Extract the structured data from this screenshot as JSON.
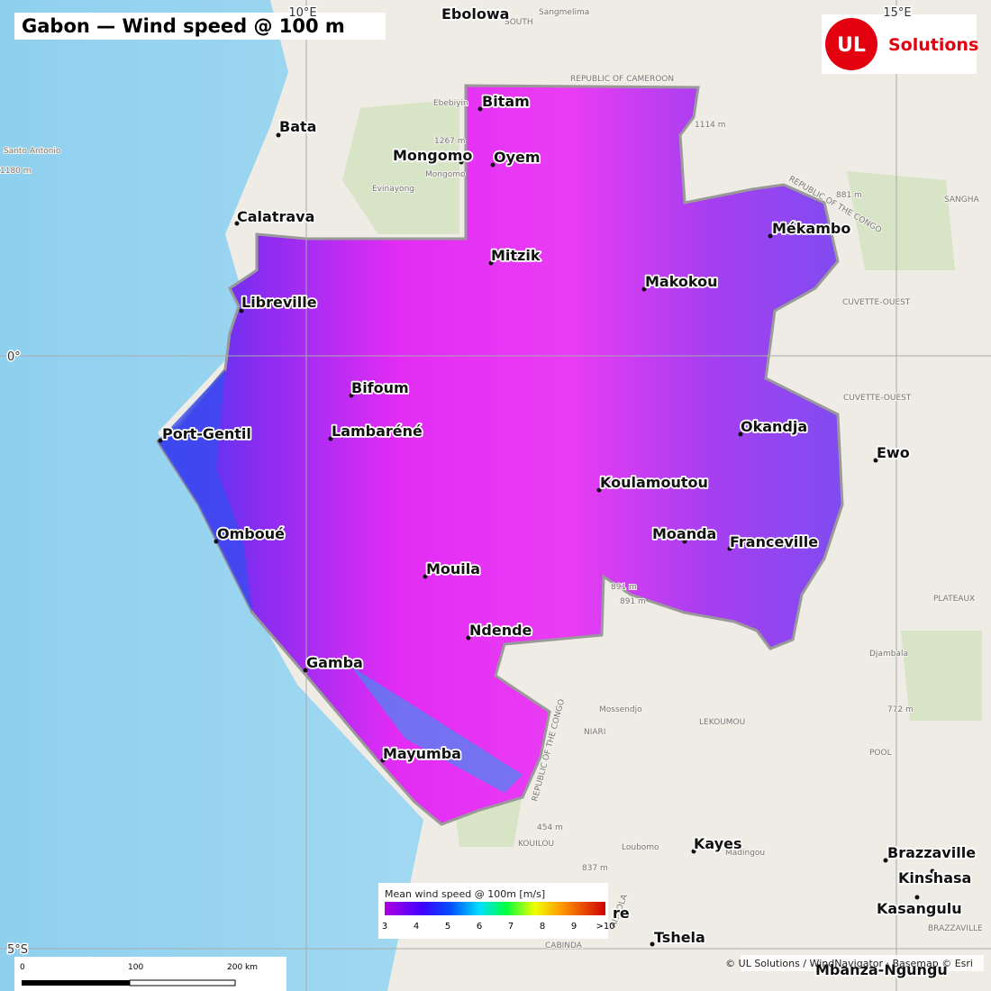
{
  "header": {
    "title": "Gabon — Wind speed @ 100 m"
  },
  "logo": {
    "mark": "UL",
    "text": "Solutions"
  },
  "graticule": [
    "10°E",
    "15°E",
    "0°",
    "5°S"
  ],
  "cities": [
    "Ebolowa",
    "Bitam",
    "Bata",
    "Mongomo",
    "Oyem",
    "Calatrava",
    "Mékambo",
    "Mitzik",
    "Makokou",
    "Libreville",
    "Bifoum",
    "Lambaréné",
    "Okandja",
    "Port-Gentil",
    "Ewo",
    "Koulamoutou",
    "Omboué",
    "Moanda",
    "Franceville",
    "Mouila",
    "Ndende",
    "Gamba",
    "Mayumba",
    "Kayes",
    "Brazzaville",
    "Kinshasa",
    "Kasangulu",
    "Tshela",
    "re",
    "Mbanza-Ngungu"
  ],
  "basemap_labels": [
    "Sangmelima",
    "SOUTH",
    "REPUBLIC OF CAMEROON",
    "Ebebiyin",
    "Evinayong",
    "Mongomo",
    "1267 m",
    "1114 m",
    "881 m",
    "Santo Antonio",
    "1180 m",
    "SANGHA",
    "CUVETTE-OUEST",
    "CUVETTE-OUEST",
    "PLATEAUX",
    "Djambala",
    "Mossendjo",
    "NIARI",
    "LEKOUMOU",
    "POOL",
    "891 m",
    "891 m",
    "772 m",
    "454 m",
    "837 m",
    "KOUILOU",
    "Loubomo",
    "Madingou",
    "BRAZZAVILLE",
    "REPUBLIC OF THE CONGO",
    "REPUBLIC OF THE CONGO",
    "ANGOLA",
    "CABINDA"
  ],
  "legend": {
    "title": "Mean wind speed @ 100m  [m/s]",
    "ticks": [
      3,
      4,
      5,
      6,
      7,
      8,
      9
    ],
    "last": ">10"
  },
  "scale_bar": [
    "0",
    "100",
    "200 km"
  ],
  "attribution": "© UL Solutions / WindNavigator · Basemap © Esri"
}
